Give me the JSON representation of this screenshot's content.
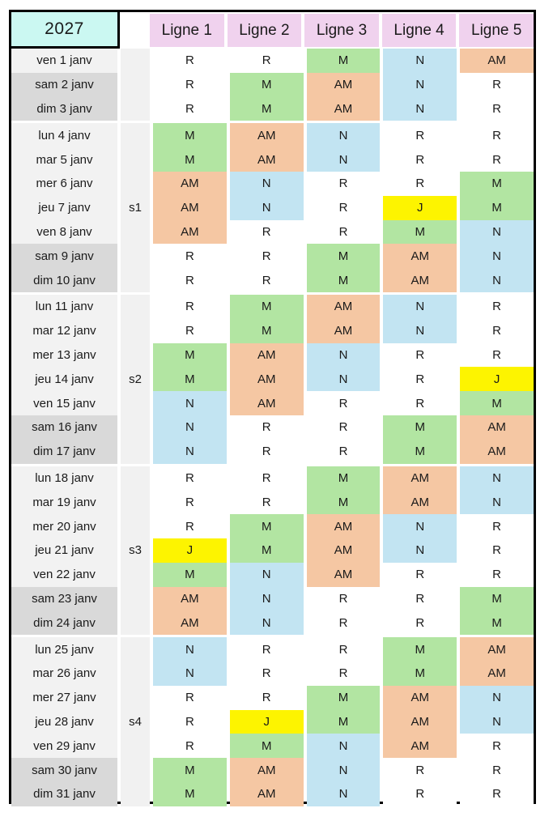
{
  "year": "2027",
  "columns": [
    "Ligne 1",
    "Ligne 2",
    "Ligne 3",
    "Ligne 4",
    "Ligne 5"
  ],
  "colors": {
    "year_bg": "#cbf8f2",
    "header_bg": "#f0d2ee",
    "weekday_bg": "#f2f2f2",
    "weekend_bg": "#d9d9d9",
    "week_col_bg": "#f1f1f1",
    "border": "#000000"
  },
  "shift_colors": {
    "R": "#ffffff",
    "M": "#b2e5a2",
    "AM": "#f5c7a3",
    "N": "#c2e4f2",
    "J": "#fdf400"
  },
  "weeks": [
    {
      "label": "",
      "label_day_index": -1,
      "days": [
        {
          "date": "ven 1 janv",
          "weekend": false,
          "shifts": [
            "R",
            "R",
            "M",
            "N",
            "AM"
          ]
        },
        {
          "date": "sam 2 janv",
          "weekend": true,
          "shifts": [
            "R",
            "M",
            "AM",
            "N",
            "R"
          ]
        },
        {
          "date": "dim 3 janv",
          "weekend": true,
          "shifts": [
            "R",
            "M",
            "AM",
            "N",
            "R"
          ]
        }
      ]
    },
    {
      "label": "s1",
      "label_day_index": 3,
      "days": [
        {
          "date": "lun 4 janv",
          "weekend": false,
          "shifts": [
            "M",
            "AM",
            "N",
            "R",
            "R"
          ]
        },
        {
          "date": "mar 5 janv",
          "weekend": false,
          "shifts": [
            "M",
            "AM",
            "N",
            "R",
            "R"
          ]
        },
        {
          "date": "mer 6 janv",
          "weekend": false,
          "shifts": [
            "AM",
            "N",
            "R",
            "R",
            "M"
          ]
        },
        {
          "date": "jeu 7 janv",
          "weekend": false,
          "shifts": [
            "AM",
            "N",
            "R",
            "J",
            "M"
          ]
        },
        {
          "date": "ven 8 janv",
          "weekend": false,
          "shifts": [
            "AM",
            "R",
            "R",
            "M",
            "N"
          ]
        },
        {
          "date": "sam 9 janv",
          "weekend": true,
          "shifts": [
            "R",
            "R",
            "M",
            "AM",
            "N"
          ]
        },
        {
          "date": "dim 10 janv",
          "weekend": true,
          "shifts": [
            "R",
            "R",
            "M",
            "AM",
            "N"
          ]
        }
      ]
    },
    {
      "label": "s2",
      "label_day_index": 3,
      "days": [
        {
          "date": "lun 11 janv",
          "weekend": false,
          "shifts": [
            "R",
            "M",
            "AM",
            "N",
            "R"
          ]
        },
        {
          "date": "mar 12 janv",
          "weekend": false,
          "shifts": [
            "R",
            "M",
            "AM",
            "N",
            "R"
          ]
        },
        {
          "date": "mer 13 janv",
          "weekend": false,
          "shifts": [
            "M",
            "AM",
            "N",
            "R",
            "R"
          ]
        },
        {
          "date": "jeu 14 janv",
          "weekend": false,
          "shifts": [
            "M",
            "AM",
            "N",
            "R",
            "J"
          ]
        },
        {
          "date": "ven 15 janv",
          "weekend": false,
          "shifts": [
            "N",
            "AM",
            "R",
            "R",
            "M"
          ]
        },
        {
          "date": "sam 16 janv",
          "weekend": true,
          "shifts": [
            "N",
            "R",
            "R",
            "M",
            "AM"
          ]
        },
        {
          "date": "dim 17 janv",
          "weekend": true,
          "shifts": [
            "N",
            "R",
            "R",
            "M",
            "AM"
          ]
        }
      ]
    },
    {
      "label": "s3",
      "label_day_index": 3,
      "days": [
        {
          "date": "lun 18 janv",
          "weekend": false,
          "shifts": [
            "R",
            "R",
            "M",
            "AM",
            "N"
          ]
        },
        {
          "date": "mar 19 janv",
          "weekend": false,
          "shifts": [
            "R",
            "R",
            "M",
            "AM",
            "N"
          ]
        },
        {
          "date": "mer 20 janv",
          "weekend": false,
          "shifts": [
            "R",
            "M",
            "AM",
            "N",
            "R"
          ]
        },
        {
          "date": "jeu 21 janv",
          "weekend": false,
          "shifts": [
            "J",
            "M",
            "AM",
            "N",
            "R"
          ]
        },
        {
          "date": "ven 22 janv",
          "weekend": false,
          "shifts": [
            "M",
            "N",
            "AM",
            "R",
            "R"
          ]
        },
        {
          "date": "sam 23 janv",
          "weekend": true,
          "shifts": [
            "AM",
            "N",
            "R",
            "R",
            "M"
          ]
        },
        {
          "date": "dim 24 janv",
          "weekend": true,
          "shifts": [
            "AM",
            "N",
            "R",
            "R",
            "M"
          ]
        }
      ]
    },
    {
      "label": "s4",
      "label_day_index": 3,
      "days": [
        {
          "date": "lun 25 janv",
          "weekend": false,
          "shifts": [
            "N",
            "R",
            "R",
            "M",
            "AM"
          ]
        },
        {
          "date": "mar 26 janv",
          "weekend": false,
          "shifts": [
            "N",
            "R",
            "R",
            "M",
            "AM"
          ]
        },
        {
          "date": "mer 27 janv",
          "weekend": false,
          "shifts": [
            "R",
            "R",
            "M",
            "AM",
            "N"
          ]
        },
        {
          "date": "jeu 28 janv",
          "weekend": false,
          "shifts": [
            "R",
            "J",
            "M",
            "AM",
            "N"
          ]
        },
        {
          "date": "ven 29 janv",
          "weekend": false,
          "shifts": [
            "R",
            "M",
            "N",
            "AM",
            "R"
          ]
        },
        {
          "date": "sam 30 janv",
          "weekend": true,
          "shifts": [
            "M",
            "AM",
            "N",
            "R",
            "R"
          ]
        },
        {
          "date": "dim 31 janv",
          "weekend": true,
          "shifts": [
            "M",
            "AM",
            "N",
            "R",
            "R"
          ]
        }
      ]
    }
  ]
}
